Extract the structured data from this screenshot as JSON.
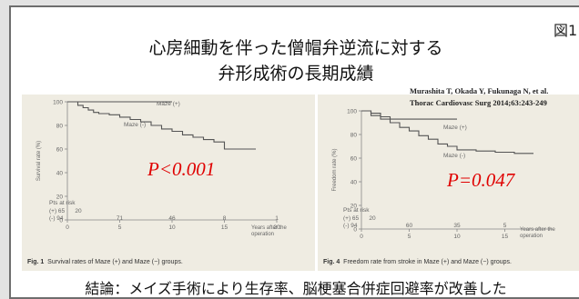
{
  "slide": {
    "title_line1": "心房細動を伴った僧帽弁逆流に対する",
    "title_line2": "弁形成術の長期成績",
    "figure_label": "図1",
    "citation_line1": "Murashita T, Okada Y, Fukunaga N, et al.",
    "citation_line2": "Thorac Cardiovasc Surg 2014;63:243-249",
    "conclusion": "結論：メイズ手術により生存率、脳梗塞合併症回避率が改善した"
  },
  "chart_data": [
    {
      "type": "line",
      "title": "",
      "xlabel": "Years after the operation",
      "ylabel": "Survival rate (%)",
      "xlim": [
        0,
        20
      ],
      "ylim": [
        0,
        100
      ],
      "x_ticks": [
        "0",
        "5",
        "10",
        "15",
        "20"
      ],
      "y_ticks": [
        "0",
        "20",
        "40",
        "60",
        "80",
        "100"
      ],
      "series": [
        {
          "name": "Maze (+)",
          "x": [
            0,
            10
          ],
          "y": [
            100,
            100
          ]
        },
        {
          "name": "Maze (-)",
          "x": [
            0,
            1,
            1.5,
            2,
            2.5,
            3,
            4,
            5,
            6,
            7,
            8,
            9,
            10,
            11,
            12,
            13,
            14,
            15,
            16,
            17,
            18
          ],
          "y": [
            100,
            97,
            95,
            93,
            91,
            90,
            89,
            87,
            85,
            83,
            80,
            77,
            75,
            72,
            70,
            68,
            66,
            60,
            60,
            60,
            60
          ]
        }
      ],
      "p_value": "P<0.001",
      "risk_table": {
        "label": "Pts at risk",
        "rows": [
          {
            "label": "(+) 65",
            "values": [
              "20",
              "",
              "",
              "",
              ""
            ]
          },
          {
            "label": "(-) 94",
            "values": [
              "",
              "71",
              "46",
              "8",
              "1"
            ]
          }
        ]
      },
      "caption_fig": "Fig. 1",
      "caption_text": "Survival rates of Maze (+) and Maze (−) groups."
    },
    {
      "type": "line",
      "title": "",
      "xlabel": "Years after the operation",
      "ylabel": "Freedom rate (%)",
      "xlim": [
        0,
        20
      ],
      "ylim": [
        0,
        100
      ],
      "x_ticks": [
        "0",
        "5",
        "10",
        "15"
      ],
      "y_ticks": [
        "0",
        "20",
        "40",
        "60",
        "80",
        "100"
      ],
      "series": [
        {
          "name": "Maze (+)",
          "x": [
            0,
            1,
            2,
            3,
            10
          ],
          "y": [
            100,
            98,
            95,
            93,
            93
          ]
        },
        {
          "name": "Maze (-)",
          "x": [
            0,
            1,
            2,
            3,
            4,
            5,
            6,
            7,
            8,
            9,
            10,
            12,
            14,
            16,
            18
          ],
          "y": [
            100,
            96,
            93,
            90,
            86,
            83,
            79,
            76,
            72,
            70,
            67,
            66,
            65,
            64,
            64
          ]
        }
      ],
      "p_value": "P=0.047",
      "risk_table": {
        "label": "Pts at risk",
        "rows": [
          {
            "label": "(+) 65",
            "values": [
              "20",
              "",
              "",
              ""
            ]
          },
          {
            "label": "(-) 94",
            "values": [
              "",
              "60",
              "35",
              "5"
            ]
          }
        ]
      },
      "caption_fig": "Fig. 4",
      "caption_text": "Freedom rate from stroke in Maze (+) and Maze (−) groups."
    }
  ]
}
